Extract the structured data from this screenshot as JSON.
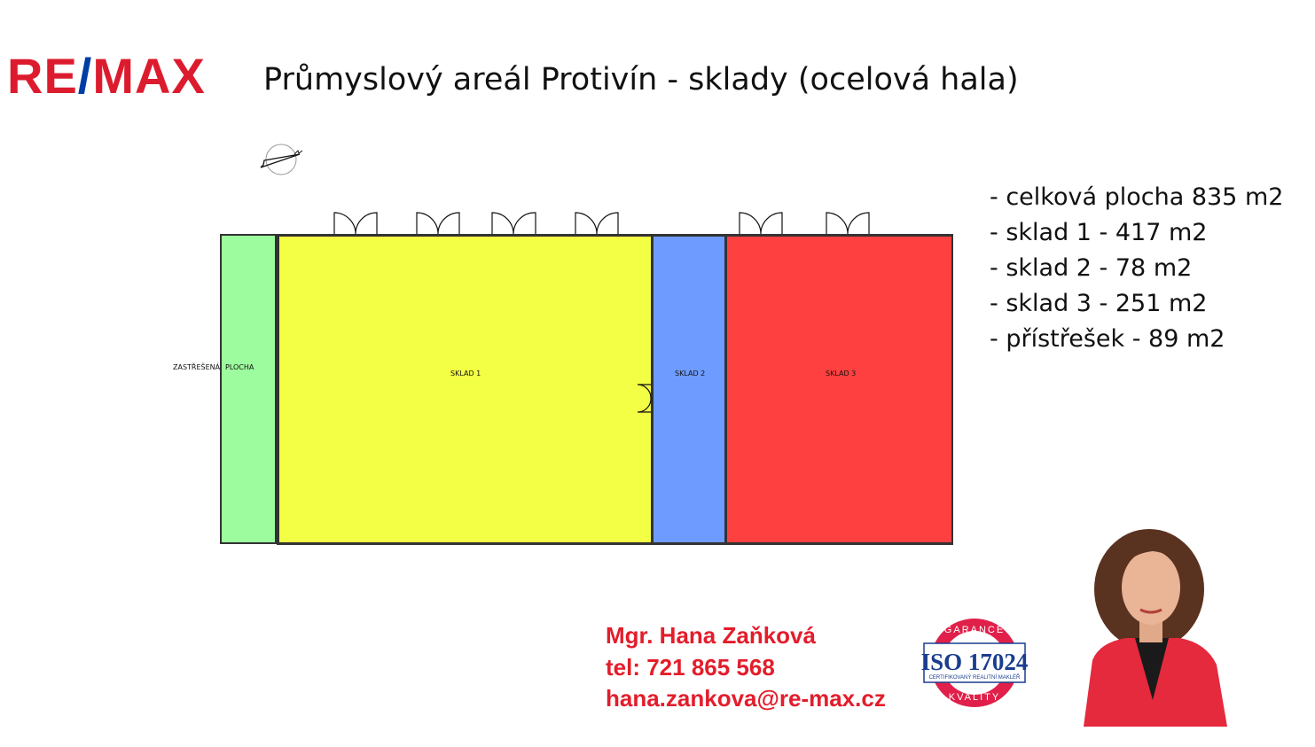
{
  "logo": {
    "text": "RE/MAX",
    "brand_red": "#dc1c2e",
    "brand_blue": "#003da5"
  },
  "title": "Průmyslový areál Protivín - sklady (ocelová hala)",
  "floorplan": {
    "compass": "north-arrow-icon",
    "rooms": [
      {
        "label_left": "ZASTŘEŠENÁ",
        "label_right": "PLOCHA",
        "color": "#9dfc9d"
      },
      {
        "label": "SKLAD 1",
        "color": "#f3ff44"
      },
      {
        "label": "SKLAD 2",
        "color": "#6e9bff"
      },
      {
        "label": "SKLAD 3",
        "color": "#ff4040"
      }
    ]
  },
  "facts": [
    "- celková plocha 835 m2",
    "- sklad 1 - 417 m2",
    "- sklad 2 - 78 m2",
    "- sklad 3 - 251 m2",
    "- přístřešek - 89 m2"
  ],
  "contact": {
    "name": "Mgr. Hana Zaňková",
    "phone": "tel: 721 865 568",
    "email": "hana.zankova@re-max.cz",
    "color": "#e31d2b"
  },
  "badge": {
    "top": "GARANCE",
    "main": "ISO 17024",
    "sub": "CERTIFIKOVANÝ REALITNÍ MAKLÉŘ",
    "bottom": "KVALITY"
  }
}
